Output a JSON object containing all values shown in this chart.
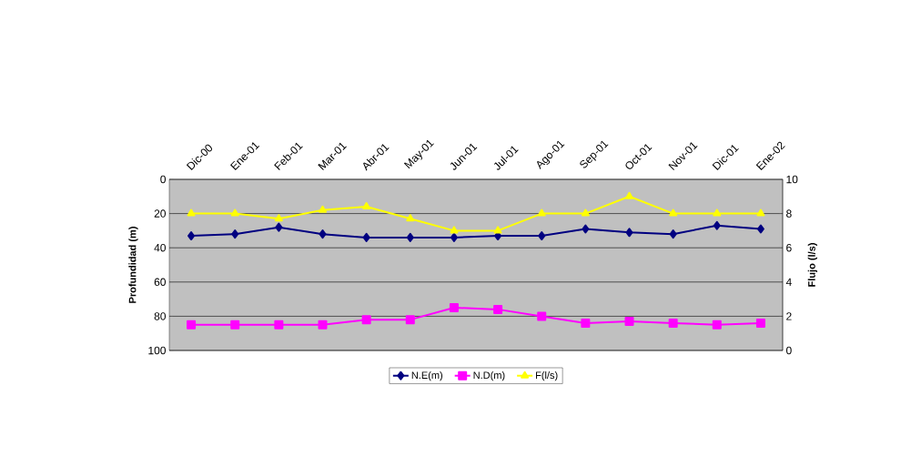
{
  "chart_data": {
    "type": "line",
    "categories": [
      "Dic-00",
      "Ene-01",
      "Feb-01",
      "Mar-01",
      "Abr-01",
      "May-01",
      "Jun-01",
      "Jul-01",
      "Ago-01",
      "Sep-01",
      "Oct-01",
      "Nov-01",
      "Dic-01",
      "Ene-02"
    ],
    "series": [
      {
        "name": "N.E(m)",
        "color": "#000080",
        "marker": "diamond",
        "values": [
          33,
          32,
          28,
          32,
          34,
          34,
          34,
          33,
          33,
          29,
          31,
          32,
          27,
          29
        ]
      },
      {
        "name": "N.D(m)",
        "color": "#ff00ff",
        "marker": "square",
        "values": [
          85,
          85,
          85,
          85,
          82,
          82,
          75,
          76,
          80,
          84,
          83,
          84,
          85,
          84
        ]
      },
      {
        "name": "F(l/s)",
        "color": "#ffff00",
        "marker": "triangle",
        "axis": "y2",
        "values": [
          8,
          8,
          7.7,
          8.2,
          8.4,
          7.7,
          7,
          7,
          8,
          8,
          9,
          8,
          8,
          8
        ]
      }
    ],
    "ylabel": "Profundidad (m)",
    "y2label": "Flujo (l/s)",
    "ylim": [
      100,
      0
    ],
    "yticks": [
      0,
      20,
      40,
      60,
      80,
      100
    ],
    "y2lim": [
      0,
      10
    ],
    "y2ticks": [
      0,
      2,
      4,
      6,
      8,
      10
    ],
    "grid": "y",
    "legend": "bottom",
    "line_style": "solid"
  }
}
